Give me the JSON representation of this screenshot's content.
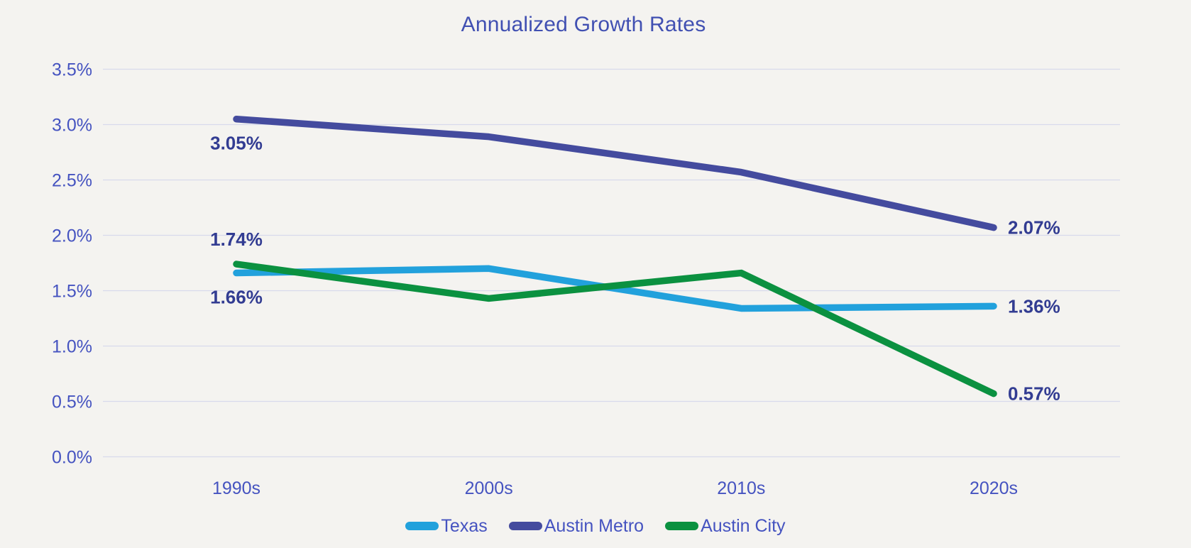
{
  "chart_data": {
    "type": "line",
    "title": "Annualized Growth Rates",
    "categories": [
      "1990s",
      "2000s",
      "2010s",
      "2020s"
    ],
    "series": [
      {
        "name": "Texas",
        "color": "#22A1DC",
        "values": [
          1.66,
          1.7,
          1.34,
          1.36
        ]
      },
      {
        "name": "Austin Metro",
        "color": "#444B9E",
        "values": [
          3.05,
          2.89,
          2.57,
          2.07
        ]
      },
      {
        "name": "Austin City",
        "color": "#0B9140",
        "values": [
          1.74,
          1.43,
          1.66,
          0.57
        ]
      }
    ],
    "annotations": [
      {
        "series_index": 1,
        "point_index": 0,
        "text": "3.05%",
        "placement": "below"
      },
      {
        "series_index": 2,
        "point_index": 0,
        "text": "1.74%",
        "placement": "above"
      },
      {
        "series_index": 0,
        "point_index": 0,
        "text": "1.66%",
        "placement": "below"
      },
      {
        "series_index": 1,
        "point_index": 3,
        "text": "2.07%",
        "placement": "right"
      },
      {
        "series_index": 0,
        "point_index": 3,
        "text": "1.36%",
        "placement": "right"
      },
      {
        "series_index": 2,
        "point_index": 3,
        "text": "0.57%",
        "placement": "right"
      }
    ],
    "y_axis": {
      "min": 0.0,
      "max": 3.5,
      "tick_step": 0.5,
      "ticks": [
        {
          "value": 0.0,
          "label": "0.0%"
        },
        {
          "value": 0.5,
          "label": "0.5%"
        },
        {
          "value": 1.0,
          "label": "1.0%"
        },
        {
          "value": 1.5,
          "label": "1.5%"
        },
        {
          "value": 2.0,
          "label": "2.0%"
        },
        {
          "value": 2.5,
          "label": "2.5%"
        },
        {
          "value": 3.0,
          "label": "3.0%"
        },
        {
          "value": 3.5,
          "label": "3.5%"
        }
      ]
    },
    "legend_position": "bottom",
    "grid": "horizontal",
    "colors": {
      "background": "#F4F3F0",
      "gridline": "#D8DAEB",
      "axis_text": "#4553C0",
      "title_text": "#4150B2",
      "data_label_text": "#323C92"
    }
  }
}
